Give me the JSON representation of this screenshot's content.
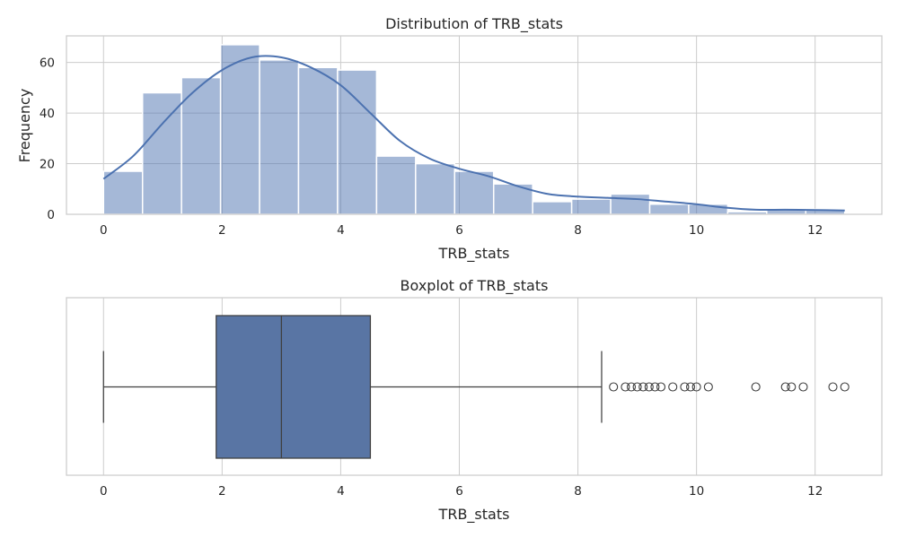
{
  "chart_data": [
    {
      "type": "histogram",
      "title": "Distribution of TRB_stats",
      "xlabel": "TRB_stats",
      "ylabel": "Frequency",
      "xlim": [
        -0.625,
        13.125
      ],
      "ylim": [
        0,
        70.5
      ],
      "xticks": [
        0,
        2,
        4,
        6,
        8,
        10,
        12
      ],
      "yticks": [
        0,
        20,
        40,
        60
      ],
      "grid": true,
      "bin_edges": [
        0.0,
        0.658,
        1.316,
        1.974,
        2.632,
        3.289,
        3.947,
        4.605,
        5.263,
        5.921,
        6.579,
        7.237,
        7.895,
        8.553,
        9.211,
        9.868,
        10.526,
        11.184,
        11.842,
        12.5
      ],
      "counts": [
        17,
        48,
        54,
        67,
        61,
        58,
        57,
        23,
        20,
        17,
        12,
        5,
        6,
        8,
        4,
        4,
        1,
        2,
        2
      ],
      "color": "#4c72b0",
      "kde": {
        "x": [
          0.0,
          0.5,
          1.0,
          1.5,
          2.0,
          2.5,
          3.0,
          3.5,
          4.0,
          4.5,
          5.0,
          5.5,
          6.0,
          6.5,
          7.0,
          7.5,
          8.0,
          8.5,
          9.0,
          9.5,
          10.0,
          10.5,
          11.0,
          11.5,
          12.0,
          12.5
        ],
        "y": [
          14,
          23,
          36,
          48,
          57,
          62,
          62,
          58,
          51,
          40,
          29,
          22,
          18,
          15,
          11,
          8,
          7,
          6.5,
          6,
          5,
          4,
          2.6,
          1.8,
          1.8,
          1.7,
          1.5
        ],
        "color": "#4c72b0"
      }
    },
    {
      "type": "boxplot",
      "title": "Boxplot of TRB_stats",
      "xlabel": "TRB_stats",
      "xlim": [
        -0.625,
        13.125
      ],
      "xticks": [
        0,
        2,
        4,
        6,
        8,
        10,
        12
      ],
      "grid": true,
      "whisker_low": 0.0,
      "q1": 1.9,
      "median": 3.0,
      "q3": 4.5,
      "whisker_high": 8.4,
      "outliers": [
        8.6,
        8.8,
        8.9,
        9.0,
        9.1,
        9.2,
        9.3,
        9.4,
        9.6,
        9.8,
        9.9,
        10.0,
        10.2,
        11.0,
        11.5,
        11.6,
        11.8,
        12.3,
        12.5
      ],
      "color": "#5975a4"
    }
  ]
}
